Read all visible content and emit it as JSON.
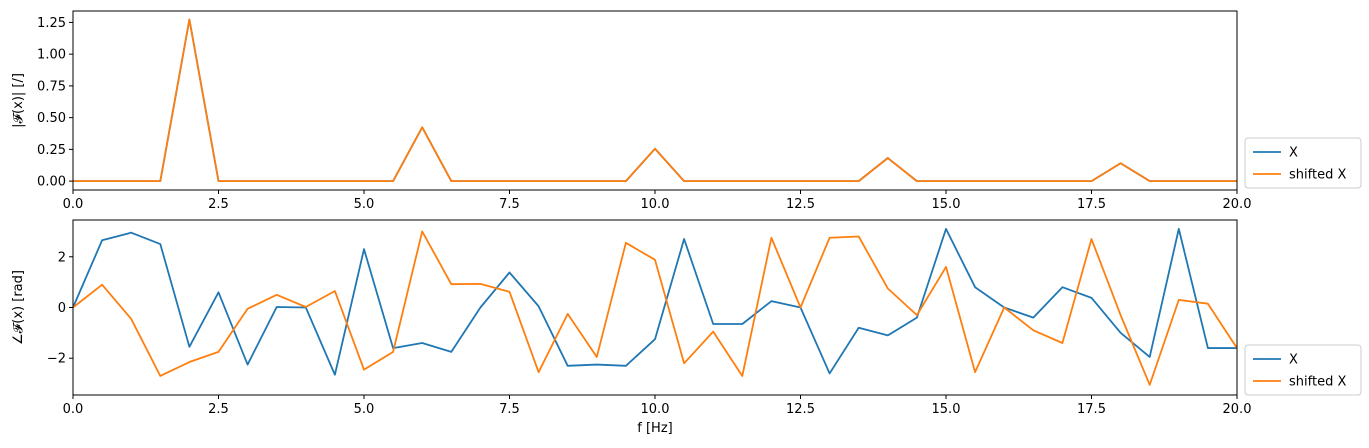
{
  "chart_data": [
    {
      "type": "line",
      "ylabel": "|𝓕(x)| [/]",
      "xlabel": "",
      "xlim": [
        0,
        20
      ],
      "ylim": [
        -0.07,
        1.34
      ],
      "xticks": [
        "0.0",
        "2.5",
        "5.0",
        "7.5",
        "10.0",
        "12.5",
        "15.0",
        "17.5",
        "20.0"
      ],
      "xtick_values": [
        0,
        2.5,
        5,
        7.5,
        10,
        12.5,
        15,
        17.5,
        20
      ],
      "yticks": [
        "0.00",
        "0.25",
        "0.50",
        "0.75",
        "1.00",
        "1.25"
      ],
      "ytick_values": [
        0,
        0.25,
        0.5,
        0.75,
        1.0,
        1.25
      ],
      "grid": false,
      "legend": "outside-lower-right",
      "x": [
        0,
        0.5,
        1,
        1.5,
        2,
        2.5,
        3,
        3.5,
        4,
        4.5,
        5,
        5.5,
        6,
        6.5,
        7,
        7.5,
        8,
        8.5,
        9,
        9.5,
        10,
        10.5,
        11,
        11.5,
        12,
        12.5,
        13,
        13.5,
        14,
        14.5,
        15,
        15.5,
        16,
        16.5,
        17,
        17.5,
        18,
        18.5,
        19,
        19.5,
        20
      ],
      "series": [
        {
          "name": "X",
          "color": "#1f77b4",
          "values": [
            0,
            0,
            0,
            0,
            1.273,
            0,
            0,
            0,
            0,
            0,
            0,
            0,
            0.424,
            0,
            0,
            0,
            0,
            0,
            0,
            0,
            0.255,
            0,
            0,
            0,
            0,
            0,
            0,
            0,
            0.182,
            0,
            0,
            0,
            0,
            0,
            0,
            0,
            0.141,
            0,
            0,
            0,
            0
          ]
        },
        {
          "name": "shifted X",
          "color": "#ff7f0e",
          "values": [
            0,
            0,
            0,
            0,
            1.273,
            0,
            0,
            0,
            0,
            0,
            0,
            0,
            0.424,
            0,
            0,
            0,
            0,
            0,
            0,
            0,
            0.255,
            0,
            0,
            0,
            0,
            0,
            0,
            0,
            0.182,
            0,
            0,
            0,
            0,
            0,
            0,
            0,
            0.141,
            0,
            0,
            0,
            0
          ]
        }
      ]
    },
    {
      "type": "line",
      "ylabel": "∠𝓕(x) [rad]",
      "xlabel": "f [Hz]",
      "xlim": [
        0,
        20
      ],
      "ylim": [
        -3.45,
        3.45
      ],
      "xticks": [
        "0.0",
        "2.5",
        "5.0",
        "7.5",
        "10.0",
        "12.5",
        "15.0",
        "17.5",
        "20.0"
      ],
      "xtick_values": [
        0,
        2.5,
        5,
        7.5,
        10,
        12.5,
        15,
        17.5,
        20
      ],
      "yticks": [
        "−2",
        "0",
        "2"
      ],
      "ytick_values": [
        -2,
        0,
        2
      ],
      "grid": false,
      "legend": "outside-lower-right",
      "x": [
        0,
        0.5,
        1,
        1.5,
        2,
        2.5,
        3,
        3.5,
        4,
        4.5,
        5,
        5.5,
        6,
        6.5,
        7,
        7.5,
        8,
        8.5,
        9,
        9.5,
        10,
        10.5,
        11,
        11.5,
        12,
        12.5,
        13,
        13.5,
        14,
        14.5,
        15,
        15.5,
        16,
        16.5,
        17,
        17.5,
        18,
        18.5,
        19,
        19.5,
        20
      ],
      "series": [
        {
          "name": "X",
          "color": "#1f77b4",
          "values": [
            0,
            2.65,
            2.95,
            2.5,
            -1.55,
            0.6,
            -2.25,
            0.02,
            0,
            -2.65,
            2.3,
            -1.6,
            -1.4,
            -1.75,
            0,
            1.38,
            0.05,
            -2.3,
            -2.25,
            -2.3,
            -1.25,
            2.7,
            -0.65,
            -0.65,
            0.25,
            0,
            -2.6,
            -0.8,
            -1.1,
            -0.4,
            3.1,
            0.8,
            0,
            -0.4,
            0.8,
            0.38,
            -1,
            -1.95,
            3.1,
            -1.6,
            -1.6
          ]
        },
        {
          "name": "shifted X",
          "color": "#ff7f0e",
          "values": [
            0,
            0.9,
            -0.45,
            -2.7,
            -2.15,
            -1.75,
            -0.05,
            0.5,
            0.02,
            0.65,
            -2.45,
            -1.75,
            3,
            0.92,
            0.93,
            0.62,
            -2.55,
            -0.25,
            -1.95,
            2.55,
            1.88,
            -2.2,
            -0.95,
            -2.7,
            2.75,
            0,
            2.75,
            2.8,
            0.75,
            -0.3,
            1.6,
            -2.55,
            0,
            -0.9,
            -1.4,
            2.7,
            -0.3,
            -3.05,
            0.3,
            0.15,
            -1.6
          ]
        }
      ]
    }
  ]
}
